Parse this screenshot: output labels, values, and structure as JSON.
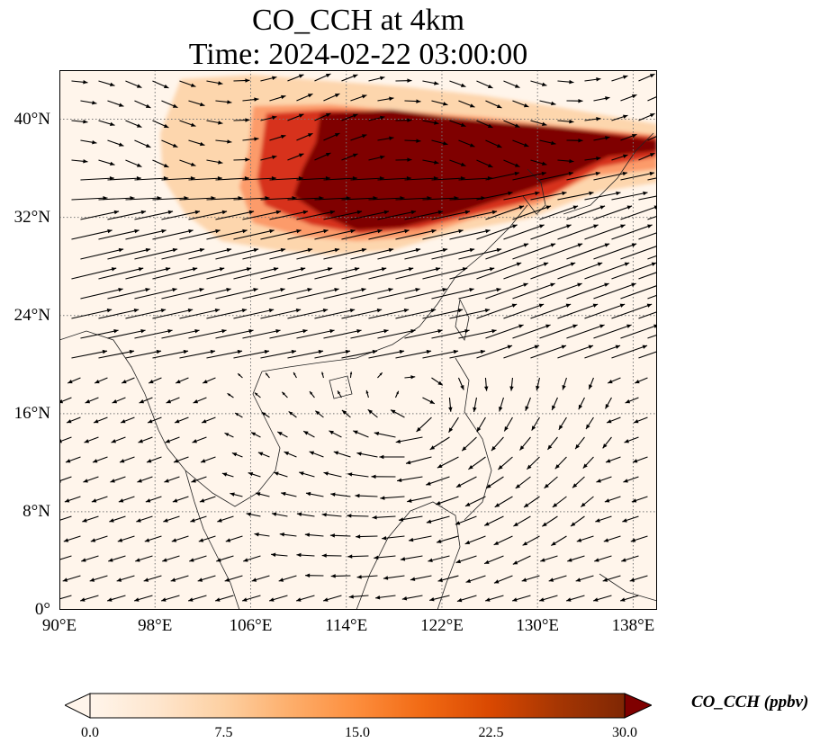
{
  "title": {
    "line1": "CO_CCH at 4km",
    "line2": "Time: 2024-02-22 03:00:00"
  },
  "map": {
    "lon_range": [
      90,
      140
    ],
    "lat_range": [
      0,
      44
    ],
    "lon_ticks": [
      {
        "value": 90,
        "label": "90°E"
      },
      {
        "value": 98,
        "label": "98°E"
      },
      {
        "value": 106,
        "label": "106°E"
      },
      {
        "value": 114,
        "label": "114°E"
      },
      {
        "value": 122,
        "label": "122°E"
      },
      {
        "value": 130,
        "label": "130°E"
      },
      {
        "value": 138,
        "label": "138°E"
      }
    ],
    "lat_ticks": [
      {
        "value": 0,
        "label": "0°"
      },
      {
        "value": 8,
        "label": "8°N"
      },
      {
        "value": 16,
        "label": "16°N"
      },
      {
        "value": 24,
        "label": "24°N"
      },
      {
        "value": 32,
        "label": "32°N"
      },
      {
        "value": 40,
        "label": "40°N"
      }
    ],
    "gridlines": true,
    "background_color": "#fff5eb",
    "plume_color": "#7f0000"
  },
  "colorbar": {
    "label": "CO_CCH (ppbv)",
    "min": 0,
    "max": 30,
    "extend": "both",
    "ticks": [
      {
        "value": 0,
        "label": "0.0"
      },
      {
        "value": 7.5,
        "label": "7.5"
      },
      {
        "value": 15,
        "label": "15.0"
      },
      {
        "value": 22.5,
        "label": "22.5"
      },
      {
        "value": 30,
        "label": "30.0"
      }
    ],
    "colors": [
      "#fff5eb",
      "#fee6ce",
      "#fdd0a2",
      "#fdae6b",
      "#fd8d3c",
      "#f16913",
      "#d94801",
      "#a63603",
      "#7f2704"
    ]
  }
}
